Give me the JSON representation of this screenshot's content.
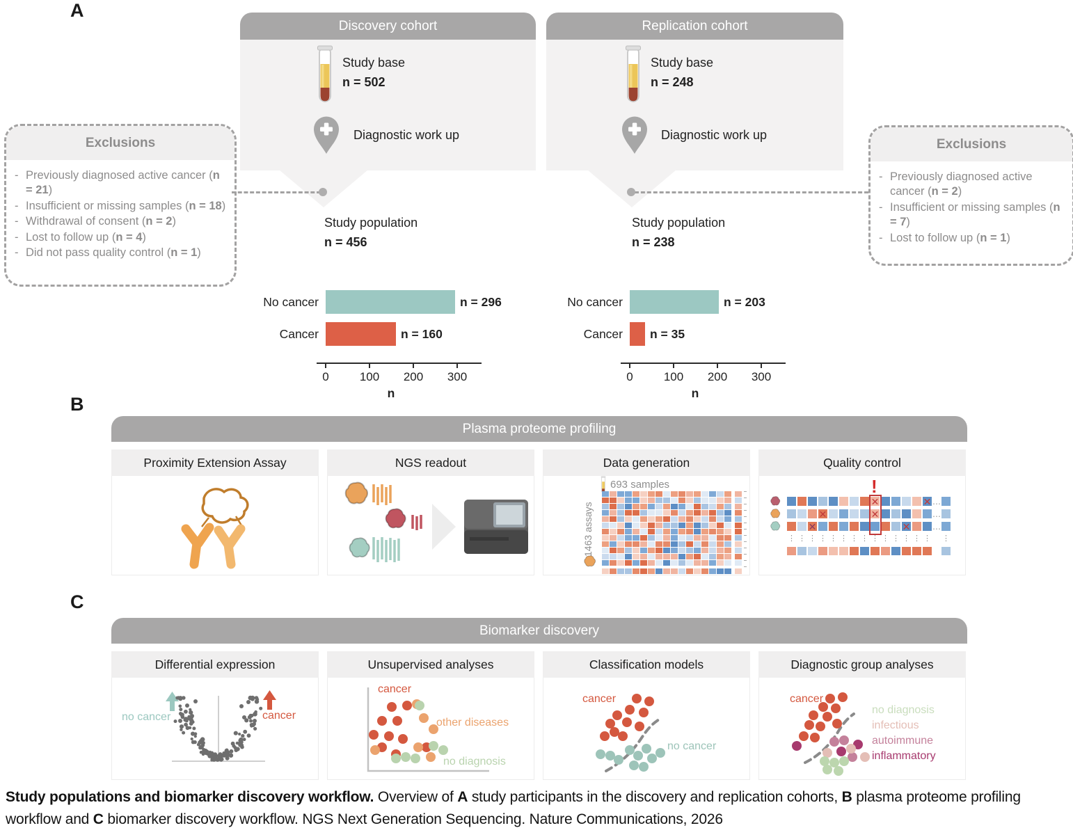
{
  "panel_a": {
    "label": "A",
    "discovery": {
      "header": "Discovery cohort",
      "study_base_label": "Study base",
      "study_base_n": "n = 502",
      "diagnostic_label": "Diagnostic work up",
      "population_label": "Study population",
      "population_n": "n = 456"
    },
    "replication": {
      "header": "Replication cohort",
      "study_base_label": "Study base",
      "study_base_n": "n = 248",
      "diagnostic_label": "Diagnostic work up",
      "population_label": "Study population",
      "population_n": "n = 238"
    },
    "exclusions_left": {
      "title": "Exclusions",
      "items": [
        {
          "label": "Previously diagnosed active cancer",
          "n": "n = 21"
        },
        {
          "label": "Insufficient or missing samples",
          "n": "n = 18"
        },
        {
          "label": "Withdrawal of consent",
          "n": "n = 2"
        },
        {
          "label": "Lost to follow up",
          "n": "n = 4"
        },
        {
          "label": "Did not pass quality control",
          "n": "n = 1"
        }
      ]
    },
    "exclusions_right": {
      "title": "Exclusions",
      "items": [
        {
          "label": "Previously diagnosed active cancer",
          "n": "n = 2"
        },
        {
          "label": "Insufficient or missing samples",
          "n": "n = 7"
        },
        {
          "label": "Lost to follow up",
          "n": "n = 1"
        }
      ]
    }
  },
  "chart_data": [
    {
      "type": "bar",
      "cohort": "discovery",
      "categories": [
        "No cancer",
        "Cancer"
      ],
      "values": [
        296,
        160
      ],
      "value_labels": [
        "n = 296",
        "n = 160"
      ],
      "colors": [
        "#9cc8c2",
        "#dd6047"
      ],
      "xlabel": "n",
      "xlim": [
        0,
        300
      ],
      "xticks": [
        0,
        100,
        200,
        300
      ],
      "grid": false,
      "orientation": "horizontal"
    },
    {
      "type": "bar",
      "cohort": "replication",
      "categories": [
        "No cancer",
        "Cancer"
      ],
      "values": [
        203,
        35
      ],
      "value_labels": [
        "n = 203",
        "n = 35"
      ],
      "colors": [
        "#9cc8c2",
        "#dd6047"
      ],
      "xlabel": "n",
      "xlim": [
        0,
        300
      ],
      "xticks": [
        0,
        100,
        200,
        300
      ],
      "grid": false,
      "orientation": "horizontal"
    }
  ],
  "panel_b": {
    "label": "B",
    "header": "Plasma proteome profiling",
    "panels": [
      {
        "title": "Proximity Extension Assay"
      },
      {
        "title": "NGS readout"
      },
      {
        "title": "Data generation",
        "samples_label": "693 samples",
        "assays_label": "1463 assays"
      },
      {
        "title": "Quality control",
        "alert": "!"
      }
    ]
  },
  "panel_c": {
    "label": "C",
    "header": "Biomarker discovery",
    "panels": [
      {
        "title": "Differential expression",
        "labels": [
          {
            "text": "no cancer",
            "color": "#9cc8c0"
          },
          {
            "text": "cancer",
            "color": "#d4583f"
          }
        ]
      },
      {
        "title": "Unsupervised analyses",
        "labels": [
          {
            "text": "cancer",
            "color": "#d4583f"
          },
          {
            "text": "other diseases",
            "color": "#eba36e"
          },
          {
            "text": "no diagnosis",
            "color": "#b9d3ae"
          }
        ]
      },
      {
        "title": "Classification models",
        "labels": [
          {
            "text": "cancer",
            "color": "#d4583f"
          },
          {
            "text": "no cancer",
            "color": "#9dc4b9"
          }
        ]
      },
      {
        "title": "Diagnostic group analyses",
        "labels": [
          {
            "text": "cancer",
            "color": "#d4583f"
          },
          {
            "text": "no diagnosis",
            "color": "#c9ddbd"
          },
          {
            "text": "infectious",
            "color": "#e4beb6"
          },
          {
            "text": "autoimmune",
            "color": "#c4819b"
          },
          {
            "text": "inflammatory",
            "color": "#a73a6e"
          }
        ]
      }
    ]
  },
  "caption": {
    "bold_lead": "Study populations and biomarker discovery workflow.",
    "rest_1": " Overview of ",
    "ref_a": "A",
    "rest_2": " study participants in the discovery and replication cohorts, ",
    "ref_b": "B",
    "rest_3": " plasma proteome profiling workflow and ",
    "ref_c": "C",
    "rest_4": " biomarker discovery workflow. NGS Next Generation Sequencing. Nature Communications, 2026"
  },
  "colors": {
    "teal": "#9cc8c2",
    "red_orange": "#dd6047",
    "header_gray": "#a8a7a7",
    "panel_light": "#f3f2f2",
    "subhead_light": "#f0efef",
    "excl_text": "#8d8c8c",
    "alert_red": "#d42b2b"
  }
}
